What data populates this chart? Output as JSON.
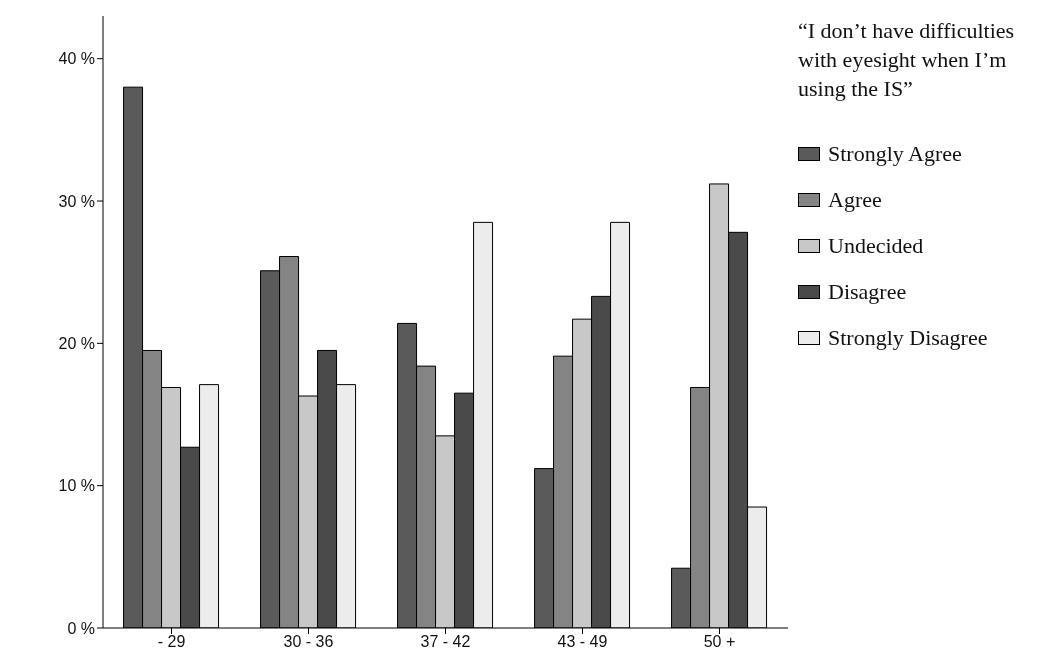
{
  "chart_data": {
    "type": "bar",
    "legend_title": "“I don’t have difficulties with eyesight when I’m using the IS”",
    "categories": [
      "- 29",
      "30 - 36",
      "37 - 42",
      "43 - 49",
      "50 +"
    ],
    "series": [
      {
        "name": "Strongly Agree",
        "color": "#5a5a5a",
        "values": [
          38,
          25.1,
          21.4,
          11.2,
          4.2
        ]
      },
      {
        "name": "Agree",
        "color": "#848484",
        "values": [
          19.5,
          26.1,
          18.4,
          19.1,
          16.9
        ]
      },
      {
        "name": "Undecided",
        "color": "#c8c8c8",
        "values": [
          16.9,
          16.3,
          13.5,
          21.7,
          31.2
        ]
      },
      {
        "name": "Disagree",
        "color": "#4a4a4a",
        "values": [
          12.7,
          19.5,
          16.5,
          23.3,
          27.8
        ]
      },
      {
        "name": "Strongly Disagree",
        "color": "#ececec",
        "values": [
          17.1,
          17.1,
          28.5,
          28.5,
          8.5
        ]
      }
    ],
    "ylim": [
      0,
      43
    ],
    "yticks": [
      {
        "value": 0,
        "label": "0 %"
      },
      {
        "value": 10,
        "label": "10 %"
      },
      {
        "value": 20,
        "label": "20 %"
      },
      {
        "value": 30,
        "label": "30 %"
      },
      {
        "value": 40,
        "label": "40 %"
      }
    ],
    "grid": false,
    "legend": "right"
  }
}
